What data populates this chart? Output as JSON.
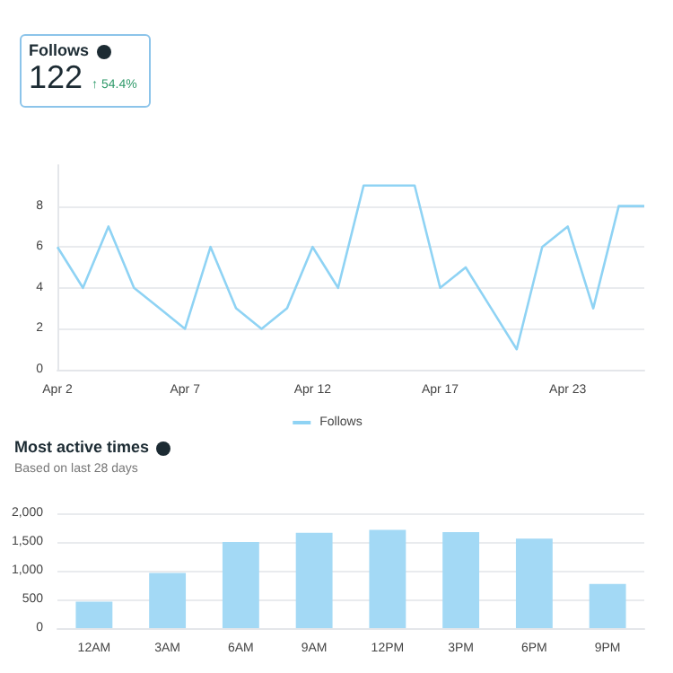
{
  "chart_data": [
    {
      "type": "other",
      "title": "Follows",
      "annotations": [
        "122",
        "↑ 54.4%"
      ]
    },
    {
      "type": "line",
      "categories": [
        "Apr 2",
        null,
        null,
        null,
        null,
        "Apr 7",
        null,
        null,
        null,
        null,
        "Apr 12",
        null,
        null,
        null,
        null,
        "Apr 17",
        null,
        null,
        null,
        null,
        "Apr 23",
        null,
        null,
        null
      ],
      "series": [
        {
          "name": "Follows",
          "color": "#8fd3f4",
          "values": [
            6,
            4,
            7,
            4,
            3,
            2,
            6,
            3,
            2,
            3,
            6,
            4,
            9,
            9,
            9,
            4,
            5,
            3,
            1,
            6,
            7,
            3,
            8,
            8
          ]
        }
      ],
      "ylim": [
        0,
        10
      ],
      "yticks": [
        0,
        2,
        4,
        6,
        8
      ],
      "grid": "y",
      "legend": "bottom",
      "marker": "none"
    },
    {
      "type": "bar",
      "title": "Most active times",
      "subtitle": "Based on last 28 days",
      "categories": [
        "12AM",
        "3AM",
        "6AM",
        "9AM",
        "12PM",
        "3PM",
        "6PM",
        "9PM"
      ],
      "values": [
        460,
        960,
        1500,
        1660,
        1710,
        1670,
        1560,
        770
      ],
      "color": "#a3d9f5",
      "ylim": [
        0,
        2000
      ],
      "yticks": [
        0,
        {
          "value": 500,
          "label": "500"
        },
        {
          "value": 1000,
          "label": "1,000"
        },
        {
          "value": 1500,
          "label": "1,500"
        },
        {
          "value": 2000,
          "label": "2,000"
        }
      ],
      "grid": "y"
    }
  ]
}
